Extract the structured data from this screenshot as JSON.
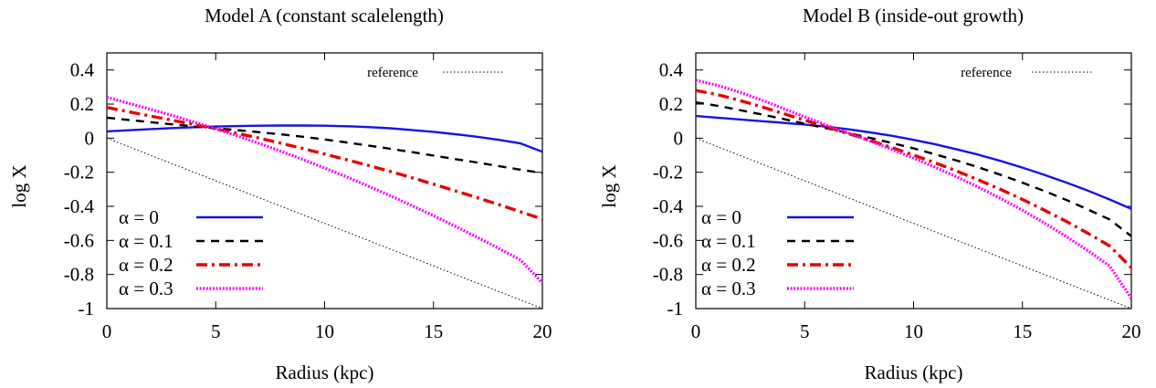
{
  "chart_data": [
    {
      "type": "line",
      "title": "Model A (constant scalelength)",
      "xlabel": "Radius (kpc)",
      "ylabel": "log X",
      "xlim": [
        0,
        20
      ],
      "ylim": [
        -1,
        0.5
      ],
      "xticks": [
        "0",
        "5",
        "10",
        "15",
        "20"
      ],
      "yticks": [
        "0.4",
        "0.2",
        "0",
        "-0.2",
        "-0.4",
        "-0.6",
        "-0.8",
        "-1"
      ],
      "grid": false,
      "legend_position": "bottom-left",
      "reference": {
        "name": "reference",
        "color": "#000000",
        "style": "dotted",
        "x": [
          0,
          20
        ],
        "y": [
          0,
          -1
        ]
      },
      "series": [
        {
          "name": "α = 0",
          "color": "#1515e6",
          "style": "solid",
          "x": [
            0,
            1,
            2,
            3,
            4,
            5,
            6,
            7,
            8,
            9,
            10,
            11,
            12,
            13,
            14,
            15,
            16,
            17,
            18,
            19,
            20
          ],
          "y": [
            0.04,
            0.046,
            0.053,
            0.059,
            0.064,
            0.068,
            0.071,
            0.073,
            0.074,
            0.074,
            0.073,
            0.07,
            0.065,
            0.058,
            0.048,
            0.037,
            0.023,
            0.008,
            -0.01,
            -0.031,
            -0.08
          ]
        },
        {
          "name": "α = 0.1",
          "color": "#000000",
          "style": "dashed",
          "x": [
            0,
            1,
            2,
            3,
            4,
            5,
            6,
            7,
            8,
            9,
            10,
            11,
            12,
            13,
            14,
            15,
            16,
            17,
            18,
            19,
            20
          ],
          "y": [
            0.12,
            0.107,
            0.094,
            0.081,
            0.069,
            0.058,
            0.047,
            0.035,
            0.022,
            0.008,
            -0.008,
            -0.025,
            -0.043,
            -0.062,
            -0.082,
            -0.102,
            -0.123,
            -0.143,
            -0.164,
            -0.185,
            -0.205
          ]
        },
        {
          "name": "α = 0.2",
          "color": "#e60000",
          "style": "dashdot",
          "x": [
            0,
            1,
            2,
            3,
            4,
            5,
            6,
            7,
            8,
            9,
            10,
            11,
            12,
            13,
            14,
            15,
            16,
            17,
            18,
            19,
            20
          ],
          "y": [
            0.18,
            0.155,
            0.13,
            0.105,
            0.08,
            0.055,
            0.028,
            0.0,
            -0.03,
            -0.061,
            -0.093,
            -0.126,
            -0.16,
            -0.195,
            -0.232,
            -0.27,
            -0.309,
            -0.349,
            -0.39,
            -0.432,
            -0.475
          ]
        },
        {
          "name": "α = 0.3",
          "color": "#ff00ff",
          "style": "dotted",
          "x": [
            0,
            1,
            2,
            3,
            4,
            5,
            6,
            7,
            8,
            9,
            10,
            11,
            12,
            13,
            14,
            15,
            16,
            17,
            18,
            19,
            20
          ],
          "y": [
            0.24,
            0.205,
            0.17,
            0.133,
            0.095,
            0.055,
            0.013,
            -0.031,
            -0.077,
            -0.125,
            -0.175,
            -0.227,
            -0.281,
            -0.337,
            -0.395,
            -0.455,
            -0.517,
            -0.581,
            -0.647,
            -0.715,
            -0.85
          ]
        }
      ]
    },
    {
      "type": "line",
      "title": "Model B (inside-out growth)",
      "xlabel": "Radius (kpc)",
      "ylabel": "log X",
      "xlim": [
        0,
        20
      ],
      "ylim": [
        -1,
        0.5
      ],
      "xticks": [
        "0",
        "5",
        "10",
        "15",
        "20"
      ],
      "yticks": [
        "0.4",
        "0.2",
        "0",
        "-0.2",
        "-0.4",
        "-0.6",
        "-0.8",
        "-1"
      ],
      "grid": false,
      "legend_position": "bottom-left",
      "reference": {
        "name": "reference",
        "color": "#000000",
        "style": "dotted",
        "x": [
          0,
          20
        ],
        "y": [
          0,
          -1
        ]
      },
      "series": [
        {
          "name": "α = 0",
          "color": "#1515e6",
          "style": "solid",
          "x": [
            0,
            1,
            2,
            3,
            4,
            5,
            6,
            7,
            8,
            9,
            10,
            11,
            12,
            13,
            14,
            15,
            16,
            17,
            18,
            19,
            20
          ],
          "y": [
            0.13,
            0.12,
            0.11,
            0.1,
            0.09,
            0.08,
            0.067,
            0.052,
            0.034,
            0.014,
            -0.01,
            -0.036,
            -0.066,
            -0.098,
            -0.134,
            -0.173,
            -0.215,
            -0.26,
            -0.308,
            -0.36,
            -0.415
          ]
        },
        {
          "name": "α = 0.1",
          "color": "#000000",
          "style": "dashed",
          "x": [
            0,
            1,
            2,
            3,
            4,
            5,
            6,
            7,
            8,
            9,
            10,
            11,
            12,
            13,
            14,
            15,
            16,
            17,
            18,
            19,
            20
          ],
          "y": [
            0.21,
            0.19,
            0.165,
            0.14,
            0.113,
            0.085,
            0.058,
            0.03,
            0.002,
            -0.028,
            -0.06,
            -0.095,
            -0.132,
            -0.172,
            -0.215,
            -0.261,
            -0.31,
            -0.362,
            -0.418,
            -0.477,
            -0.575
          ]
        },
        {
          "name": "α = 0.2",
          "color": "#e60000",
          "style": "dashdot",
          "x": [
            0,
            1,
            2,
            3,
            4,
            5,
            6,
            7,
            8,
            9,
            10,
            11,
            12,
            13,
            14,
            15,
            16,
            17,
            18,
            19,
            20
          ],
          "y": [
            0.28,
            0.255,
            0.222,
            0.185,
            0.145,
            0.105,
            0.066,
            0.027,
            -0.013,
            -0.055,
            -0.099,
            -0.145,
            -0.194,
            -0.246,
            -0.301,
            -0.36,
            -0.422,
            -0.488,
            -0.558,
            -0.632,
            -0.76
          ]
        },
        {
          "name": "α = 0.3",
          "color": "#ff00ff",
          "style": "dotted",
          "x": [
            0,
            1,
            2,
            3,
            4,
            5,
            6,
            7,
            8,
            9,
            10,
            11,
            12,
            13,
            14,
            15,
            16,
            17,
            18,
            19,
            20
          ],
          "y": [
            0.34,
            0.31,
            0.27,
            0.225,
            0.175,
            0.125,
            0.077,
            0.03,
            -0.017,
            -0.066,
            -0.117,
            -0.171,
            -0.228,
            -0.289,
            -0.354,
            -0.423,
            -0.497,
            -0.576,
            -0.66,
            -0.75,
            -0.94
          ]
        }
      ]
    }
  ]
}
